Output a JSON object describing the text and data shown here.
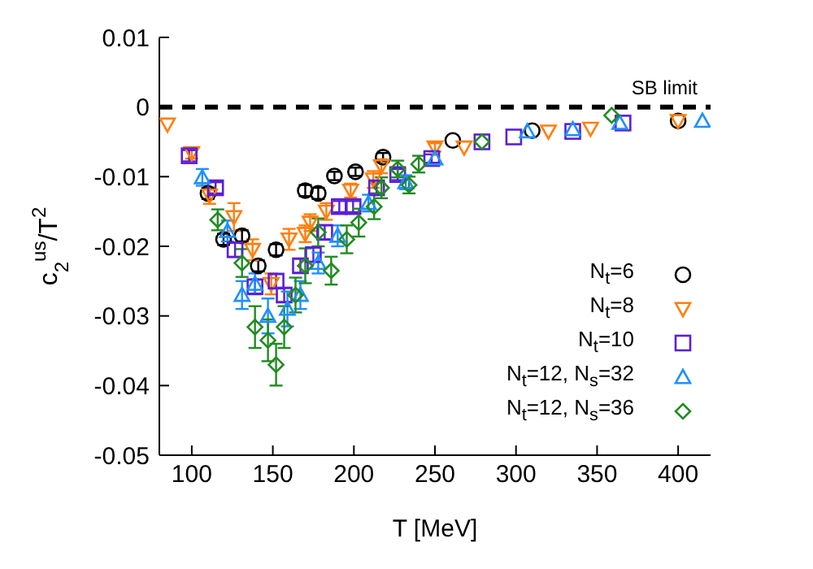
{
  "chart_data": {
    "type": "scatter",
    "xlabel": "T [MeV]",
    "ylabel": "c$_{2}$$^{us}$/T$^{2}$",
    "xlim": [
      80,
      420
    ],
    "xticks": [
      100,
      150,
      200,
      250,
      300,
      350,
      400
    ],
    "ylim": [
      -0.05,
      0.01
    ],
    "yticks": [
      0.01,
      0,
      -0.01,
      -0.02,
      -0.03,
      -0.04,
      -0.05
    ],
    "grid": false,
    "legend": "right",
    "ref_lines": [
      {
        "axis": "y",
        "value": 0,
        "label": "SB limit",
        "color": "#000000",
        "line_style": "dashed"
      }
    ],
    "series": [
      {
        "name": "N$_{t}$=6",
        "color": "#000000",
        "marker": "circle",
        "x": [
          110,
          119.6,
          131,
          141,
          152,
          170,
          178,
          188,
          201,
          218,
          261,
          310,
          400
        ],
        "values": [
          -0.0124,
          -0.019,
          -0.0185,
          -0.0228,
          -0.0205,
          -0.012,
          -0.0124,
          -0.0099,
          -0.0093,
          -0.0072,
          -0.0048,
          -0.0034,
          -0.002
        ],
        "errors": [
          0.0008,
          0.0008,
          0.0008,
          0.0008,
          0.0008,
          0.0008,
          0.0008,
          0.0006,
          0.0006,
          0.0006,
          null,
          null,
          null
        ]
      },
      {
        "name": "N$_{t}$=8",
        "color": "#ff7f0e",
        "marker": "triangle-down",
        "x": [
          85,
          100,
          111,
          126,
          137.5,
          149,
          160,
          170,
          173,
          183,
          198,
          212,
          217,
          250,
          268,
          320,
          346,
          400
        ],
        "values": [
          -0.0025,
          -0.0066,
          -0.0127,
          -0.0158,
          -0.0205,
          -0.0254,
          -0.019,
          -0.0182,
          -0.0166,
          -0.015,
          -0.012,
          -0.0104,
          -0.0085,
          -0.0058,
          -0.0058,
          -0.0035,
          -0.0031,
          -0.002
        ],
        "errors": [
          null,
          0.0008,
          0.0012,
          0.002,
          0.0015,
          0.0015,
          0.0015,
          0.0012,
          0.0012,
          0.0012,
          0.001,
          0.0012,
          0.001,
          0.0006,
          null,
          null,
          null,
          null
        ]
      },
      {
        "name": "N$_{t}$=10",
        "color": "#5b1fd6",
        "marker": "square",
        "x": [
          98.4,
          114.7,
          126.7,
          139,
          152,
          157,
          167,
          175,
          182,
          191,
          199.5,
          214,
          227,
          248,
          279,
          298.6,
          335,
          366
        ],
        "values": [
          -0.007,
          -0.0116,
          -0.0205,
          -0.0258,
          -0.025,
          -0.027,
          -0.0228,
          -0.0212,
          -0.018,
          -0.0143,
          -0.0143,
          -0.0116,
          -0.0097,
          -0.0074,
          -0.005,
          -0.0043,
          -0.0035,
          -0.0023
        ],
        "errors": [
          0.0008,
          0.0008,
          0.001,
          0.001,
          0.001,
          0.001,
          0.001,
          0.001,
          0.001,
          0.0008,
          0.0008,
          0.0008,
          0.0008,
          0.0006,
          null,
          null,
          null,
          null
        ]
      },
      {
        "name": "N$_{t}$=12, N$_{s}$=32",
        "color": "#1e90ff",
        "marker": "triangle",
        "x": [
          106.5,
          122,
          131,
          139,
          147,
          159,
          167,
          178,
          190,
          209,
          232,
          250,
          307,
          335,
          364,
          415
        ],
        "values": [
          -0.0101,
          -0.0178,
          -0.027,
          -0.0254,
          -0.03,
          -0.029,
          -0.027,
          -0.0224,
          -0.0185,
          -0.0138,
          -0.0108,
          -0.0074,
          -0.0035,
          -0.0032,
          -0.0023,
          -0.002
        ],
        "errors": [
          0.0012,
          0.0015,
          0.002,
          0.0015,
          0.0025,
          0.0025,
          0.002,
          0.0015,
          0.0015,
          0.0012,
          0.001,
          null,
          null,
          null,
          null,
          null
        ]
      },
      {
        "name": "N$_{t}$=12, N$_{s}$=36",
        "color": "#228b22",
        "marker": "diamond",
        "x": [
          116,
          131,
          139,
          147,
          152,
          157,
          164,
          170,
          178,
          186,
          195.6,
          203,
          212.5,
          217,
          227,
          234,
          240,
          279,
          359
        ],
        "values": [
          -0.0162,
          -0.0224,
          -0.0316,
          -0.0335,
          -0.037,
          -0.0316,
          -0.027,
          -0.0228,
          -0.018,
          -0.0235,
          -0.019,
          -0.0166,
          -0.0143,
          -0.0116,
          -0.0089,
          -0.0112,
          -0.0082,
          -0.005,
          -0.0012
        ],
        "errors": [
          0.0015,
          0.002,
          0.003,
          0.003,
          0.003,
          0.003,
          0.0025,
          0.0025,
          0.002,
          0.002,
          0.002,
          0.002,
          0.0018,
          0.0015,
          0.0012,
          0.0012,
          0.0012,
          null,
          null
        ]
      }
    ]
  }
}
